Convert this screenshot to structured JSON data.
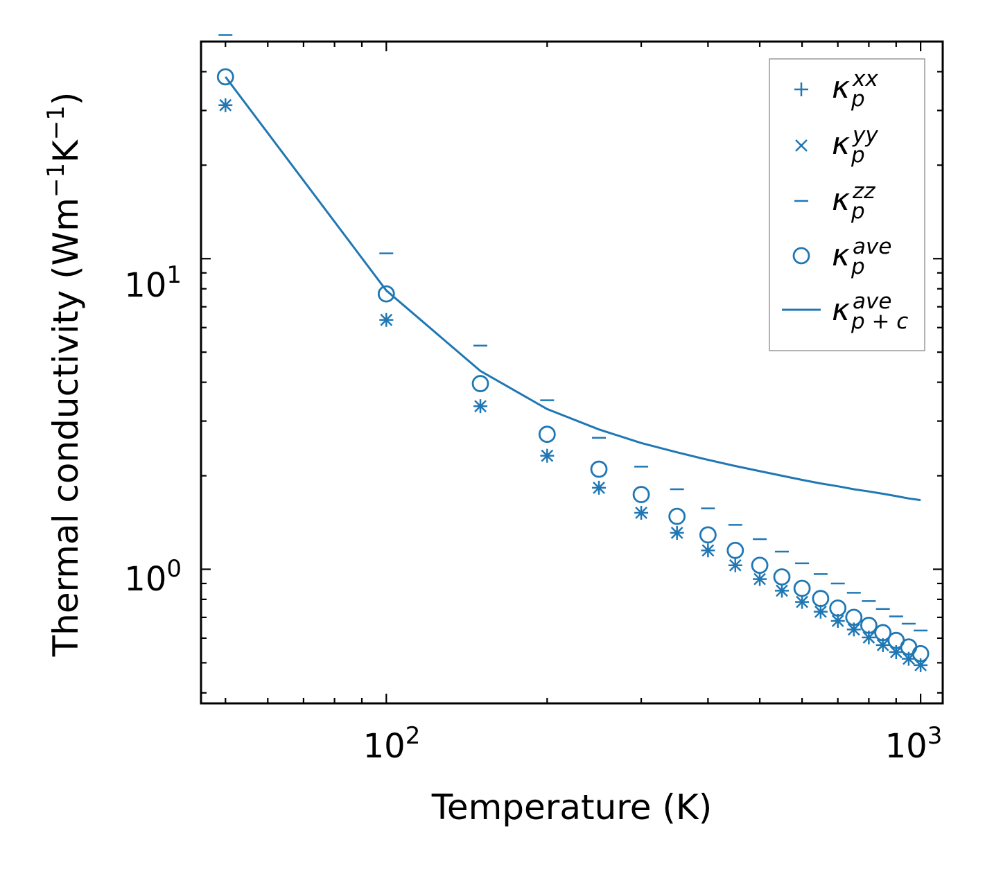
{
  "chart_data": {
    "type": "scatter",
    "title": "",
    "xlabel": "Temperature (K)",
    "ylabel": "Thermal conductivity (Wm",
    "ylabel_unit": {
      "exp1": "−1",
      "mid": "K",
      "exp2": "−1",
      "close": ")"
    },
    "xscale": "log",
    "yscale": "log",
    "xlim": [
      45,
      1100
    ],
    "ylim": [
      0.37,
      50
    ],
    "x_ticks": [
      {
        "base": "10",
        "exp": "2",
        "value": 100
      },
      {
        "base": "10",
        "exp": "3",
        "value": 1000
      }
    ],
    "y_ticks": [
      {
        "base": "10",
        "exp": "0",
        "value": 1
      },
      {
        "base": "10",
        "exp": "1",
        "value": 10
      }
    ],
    "color": "#1f77b4",
    "legend_position": "top-right",
    "x": [
      50,
      100,
      150,
      200,
      250,
      300,
      350,
      400,
      450,
      500,
      550,
      600,
      650,
      700,
      750,
      800,
      850,
      900,
      950,
      1000
    ],
    "series": [
      {
        "name": "κ_p^xx",
        "marker": "plus",
        "legend": {
          "base": "κ",
          "sub": "p",
          "sup": "xx"
        },
        "values": [
          31.2,
          6.35,
          3.35,
          2.32,
          1.83,
          1.52,
          1.31,
          1.15,
          1.03,
          0.93,
          0.853,
          0.785,
          0.73,
          0.682,
          0.64,
          0.603,
          0.57,
          0.541,
          0.515,
          0.491
        ]
      },
      {
        "name": "κ_p^yy",
        "marker": "x",
        "legend": {
          "base": "κ",
          "sub": "p",
          "sup": "yy"
        },
        "values": [
          31.2,
          6.35,
          3.35,
          2.32,
          1.83,
          1.52,
          1.31,
          1.15,
          1.03,
          0.93,
          0.853,
          0.785,
          0.73,
          0.682,
          0.64,
          0.603,
          0.57,
          0.541,
          0.515,
          0.491
        ]
      },
      {
        "name": "κ_p^zz",
        "marker": "hline",
        "legend": {
          "base": "κ",
          "sub": "p",
          "sup": "zz"
        },
        "values": [
          52.5,
          10.4,
          5.25,
          3.5,
          2.65,
          2.14,
          1.81,
          1.57,
          1.39,
          1.25,
          1.14,
          1.045,
          0.965,
          0.9,
          0.84,
          0.79,
          0.745,
          0.705,
          0.668,
          0.635
        ]
      },
      {
        "name": "κ_p^ave",
        "marker": "circle",
        "legend": {
          "base": "κ",
          "sub": "p",
          "sup": "ave"
        },
        "values": [
          38.5,
          7.7,
          3.96,
          2.72,
          2.1,
          1.74,
          1.48,
          1.29,
          1.15,
          1.03,
          0.945,
          0.868,
          0.805,
          0.75,
          0.7,
          0.66,
          0.625,
          0.59,
          0.562,
          0.535
        ]
      },
      {
        "name": "κ_p+c^ave",
        "marker": "line",
        "legend": {
          "base": "κ",
          "sub": "p + c",
          "sup": "ave"
        },
        "values": [
          38.5,
          7.9,
          4.35,
          3.28,
          2.82,
          2.55,
          2.38,
          2.25,
          2.15,
          2.07,
          2.0,
          1.94,
          1.89,
          1.85,
          1.81,
          1.78,
          1.75,
          1.72,
          1.69,
          1.67
        ]
      }
    ]
  }
}
